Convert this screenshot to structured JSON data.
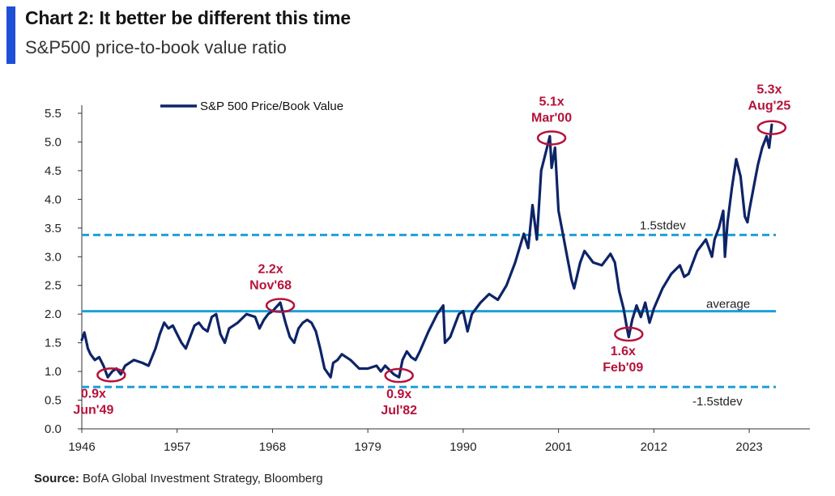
{
  "header": {
    "title": "Chart 2: It better be different this time",
    "subtitle": "S&P500 price-to-book value ratio"
  },
  "footer": {
    "source_label": "Source:",
    "source_text": "BofA Global Investment Strategy, Bloomberg"
  },
  "colors": {
    "accent": "#1e4fd6",
    "series": "#0d2467",
    "reference": "#1e9fd8",
    "annotation": "#b5123a"
  },
  "chart_data": {
    "type": "line",
    "title": "S&P500 price-to-book value ratio",
    "xlabel": "",
    "ylabel": "",
    "xlim": [
      1946,
      2030
    ],
    "ylim": [
      0,
      5.5
    ],
    "x_ticks": [
      1946,
      1957,
      1968,
      1979,
      1990,
      2001,
      2012,
      2023
    ],
    "y_ticks": [
      0.0,
      0.5,
      1.0,
      1.5,
      2.0,
      2.5,
      3.0,
      3.5,
      4.0,
      4.5,
      5.0,
      5.5
    ],
    "y_tick_labels": [
      "0.0",
      "0.5",
      "1.0",
      "1.5",
      "2.0",
      "2.5",
      "3.0",
      "3.5",
      "4.0",
      "4.5",
      "5.0",
      "5.5"
    ],
    "legend": {
      "position": "top-left",
      "entries": [
        "S&P 500 Price/Book Value"
      ]
    },
    "series": [
      {
        "name": "S&P 500 Price/Book Value",
        "x": [
          1946.0,
          1946.3,
          1946.7,
          1947.0,
          1947.5,
          1948.0,
          1948.5,
          1949.0,
          1949.5,
          1950.0,
          1950.5,
          1951.0,
          1952.0,
          1953.0,
          1953.7,
          1954.5,
          1955.0,
          1955.5,
          1956.0,
          1956.5,
          1957.0,
          1957.5,
          1958.0,
          1958.5,
          1959.0,
          1959.5,
          1960.0,
          1960.5,
          1961.0,
          1961.5,
          1962.0,
          1962.5,
          1963.0,
          1964.0,
          1965.0,
          1966.0,
          1966.5,
          1967.0,
          1967.5,
          1968.0,
          1968.9,
          1969.5,
          1970.0,
          1970.5,
          1971.0,
          1971.5,
          1972.0,
          1972.5,
          1973.0,
          1973.5,
          1974.0,
          1974.7,
          1975.0,
          1975.5,
          1976.0,
          1977.0,
          1978.0,
          1979.0,
          1980.0,
          1980.5,
          1981.0,
          1982.0,
          1982.6,
          1983.0,
          1983.5,
          1984.0,
          1984.5,
          1985.0,
          1986.0,
          1987.0,
          1987.7,
          1987.9,
          1988.5,
          1989.0,
          1989.5,
          1990.0,
          1990.5,
          1991.0,
          1992.0,
          1993.0,
          1994.0,
          1995.0,
          1996.0,
          1997.0,
          1997.5,
          1998.0,
          1998.5,
          1999.0,
          1999.5,
          2000.0,
          2000.2,
          2000.6,
          2001.0,
          2001.5,
          2002.0,
          2002.5,
          2002.8,
          2003.5,
          2004.0,
          2005.0,
          2006.0,
          2007.0,
          2007.5,
          2008.0,
          2008.5,
          2008.9,
          2009.1,
          2009.5,
          2010.0,
          2010.5,
          2011.0,
          2011.5,
          2012.0,
          2013.0,
          2014.0,
          2015.0,
          2015.5,
          2016.0,
          2017.0,
          2018.0,
          2018.7,
          2019.0,
          2019.5,
          2020.0,
          2020.2,
          2020.5,
          2021.0,
          2021.5,
          2022.0,
          2022.5,
          2022.8,
          2023.0,
          2023.5,
          2024.0,
          2024.5,
          2025.0,
          2025.3,
          2025.6
        ],
        "values": [
          1.55,
          1.68,
          1.4,
          1.3,
          1.2,
          1.25,
          1.1,
          0.9,
          1.0,
          1.05,
          0.95,
          1.1,
          1.2,
          1.15,
          1.1,
          1.4,
          1.65,
          1.85,
          1.75,
          1.8,
          1.65,
          1.5,
          1.4,
          1.6,
          1.8,
          1.85,
          1.75,
          1.7,
          1.95,
          2.0,
          1.65,
          1.5,
          1.75,
          1.85,
          2.0,
          1.95,
          1.75,
          1.9,
          2.0,
          2.05,
          2.2,
          1.85,
          1.6,
          1.5,
          1.75,
          1.85,
          1.9,
          1.85,
          1.7,
          1.4,
          1.05,
          0.9,
          1.15,
          1.2,
          1.3,
          1.2,
          1.05,
          1.05,
          1.1,
          1.0,
          1.1,
          0.95,
          0.9,
          1.2,
          1.35,
          1.25,
          1.2,
          1.35,
          1.7,
          2.0,
          2.15,
          1.5,
          1.6,
          1.8,
          2.0,
          2.05,
          1.7,
          2.0,
          2.2,
          2.35,
          2.25,
          2.5,
          2.9,
          3.4,
          3.15,
          3.9,
          3.3,
          4.5,
          4.8,
          5.1,
          4.55,
          4.9,
          3.8,
          3.4,
          3.0,
          2.6,
          2.45,
          2.9,
          3.1,
          2.9,
          2.85,
          3.05,
          2.9,
          2.4,
          2.1,
          1.75,
          1.6,
          1.9,
          2.15,
          1.95,
          2.2,
          1.85,
          2.1,
          2.45,
          2.7,
          2.85,
          2.65,
          2.7,
          3.1,
          3.3,
          3.0,
          3.3,
          3.5,
          3.8,
          3.0,
          3.6,
          4.2,
          4.7,
          4.4,
          3.7,
          3.6,
          3.8,
          4.2,
          4.6,
          4.9,
          5.1,
          4.9,
          5.3
        ]
      }
    ],
    "reference_lines": [
      {
        "label": "1.5stdev",
        "value": 3.38,
        "style": "dashed"
      },
      {
        "label": "average",
        "value": 2.05,
        "style": "solid"
      },
      {
        "label": "-1.5stdev",
        "value": 0.73,
        "style": "dashed"
      }
    ],
    "annotations": [
      {
        "value_label": "0.9x",
        "date_label": "Jun'49",
        "x": 1949.4,
        "y": 0.94
      },
      {
        "value_label": "2.2x",
        "date_label": "Nov'68",
        "x": 1968.9,
        "y": 2.15
      },
      {
        "value_label": "0.9x",
        "date_label": "Jul'82",
        "x": 1982.6,
        "y": 0.93
      },
      {
        "value_label": "5.1x",
        "date_label": "Mar'00",
        "x": 2000.2,
        "y": 5.07
      },
      {
        "value_label": "1.6x",
        "date_label": "Feb'09",
        "x": 2009.1,
        "y": 1.65
      },
      {
        "value_label": "5.3x",
        "date_label": "Aug'25",
        "x": 2025.6,
        "y": 5.25
      }
    ]
  }
}
